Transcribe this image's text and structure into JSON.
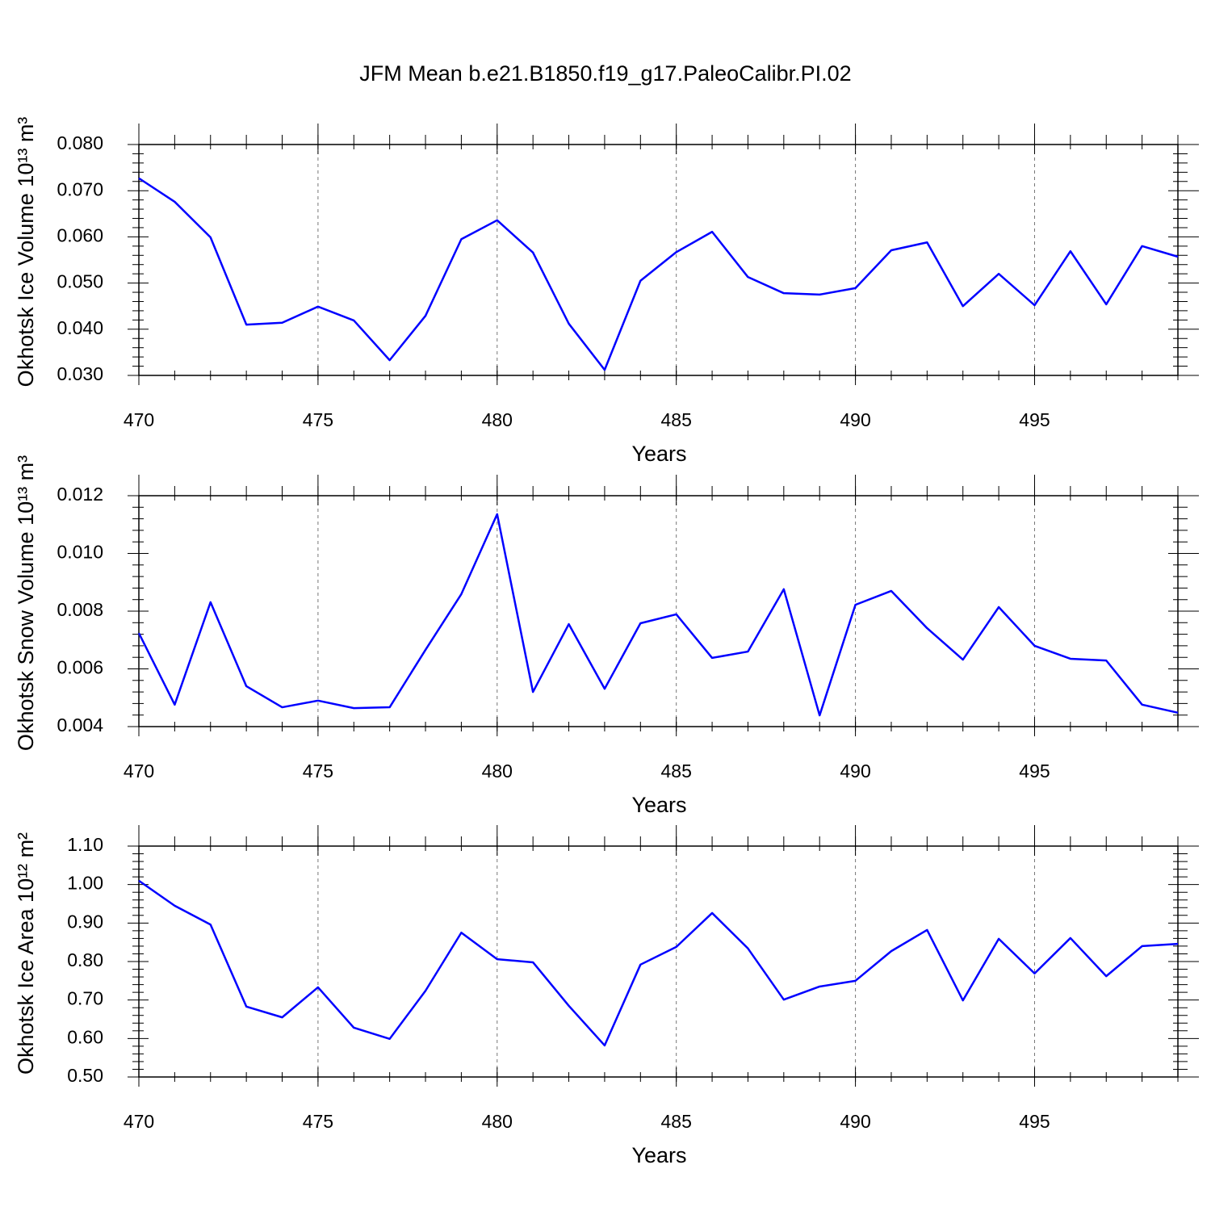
{
  "title": "JFM Mean b.e21.B1850.f19_g17.PaleoCalibr.PI.02",
  "chart_data": [
    {
      "type": "line",
      "ylabel": "Okhotsk Ice Volume 10¹³ m³",
      "xlabel": "Years",
      "color": "#0000ff",
      "grid": "x",
      "x": [
        470,
        471,
        472,
        473,
        474,
        475,
        476,
        477,
        478,
        479,
        480,
        481,
        482,
        483,
        484,
        485,
        486,
        487,
        488,
        489,
        490,
        491,
        492,
        493,
        494,
        495,
        496,
        497,
        498,
        499
      ],
      "values": [
        0.0727,
        0.0676,
        0.0599,
        0.041,
        0.0414,
        0.0449,
        0.0419,
        0.0333,
        0.0429,
        0.0595,
        0.0636,
        0.0566,
        0.0412,
        0.0312,
        0.0505,
        0.0567,
        0.0611,
        0.0513,
        0.0478,
        0.0475,
        0.0489,
        0.0571,
        0.0588,
        0.045,
        0.052,
        0.0452,
        0.0569,
        0.0454,
        0.058,
        0.0557
      ],
      "xlim": [
        470,
        499
      ],
      "xticks": [
        470,
        475,
        480,
        485,
        490,
        495
      ],
      "ylim": [
        0.03,
        0.08
      ],
      "yticks": [
        {
          "value": 0.03,
          "label": "0.030"
        },
        {
          "value": 0.04,
          "label": "0.040"
        },
        {
          "value": 0.05,
          "label": "0.050"
        },
        {
          "value": 0.06,
          "label": "0.060"
        },
        {
          "value": 0.07,
          "label": "0.070"
        },
        {
          "value": 0.08,
          "label": "0.080"
        }
      ]
    },
    {
      "type": "line",
      "ylabel": "Okhotsk Snow Volume 10¹³ m³",
      "xlabel": "Years",
      "color": "#0000ff",
      "grid": "x",
      "x": [
        470,
        471,
        472,
        473,
        474,
        475,
        476,
        477,
        478,
        479,
        480,
        481,
        482,
        483,
        484,
        485,
        486,
        487,
        488,
        489,
        490,
        491,
        492,
        493,
        494,
        495,
        496,
        497,
        498,
        499
      ],
      "values": [
        0.00724,
        0.00476,
        0.00831,
        0.0054,
        0.00467,
        0.0049,
        0.00464,
        0.00467,
        0.00666,
        0.00859,
        0.01136,
        0.0052,
        0.00755,
        0.00531,
        0.00758,
        0.00789,
        0.00638,
        0.0066,
        0.00876,
        0.00439,
        0.00822,
        0.0087,
        0.00741,
        0.00632,
        0.00814,
        0.0068,
        0.00635,
        0.00629,
        0.00476,
        0.00448
      ],
      "xlim": [
        470,
        499
      ],
      "xticks": [
        470,
        475,
        480,
        485,
        490,
        495
      ],
      "ylim": [
        0.004,
        0.012
      ],
      "yticks": [
        {
          "value": 0.004,
          "label": "0.004"
        },
        {
          "value": 0.006,
          "label": "0.006"
        },
        {
          "value": 0.008,
          "label": "0.008"
        },
        {
          "value": 0.01,
          "label": "0.010"
        },
        {
          "value": 0.012,
          "label": "0.012"
        }
      ]
    },
    {
      "type": "line",
      "ylabel": "Okhotsk Ice Area 10¹² m²",
      "xlabel": "Years",
      "color": "#0000ff",
      "grid": "x",
      "x": [
        470,
        471,
        472,
        473,
        474,
        475,
        476,
        477,
        478,
        479,
        480,
        481,
        482,
        483,
        484,
        485,
        486,
        487,
        488,
        489,
        490,
        491,
        492,
        493,
        494,
        495,
        496,
        497,
        498,
        499
      ],
      "values": [
        1.01,
        0.945,
        0.896,
        0.683,
        0.655,
        0.733,
        0.628,
        0.599,
        0.724,
        0.875,
        0.806,
        0.798,
        0.685,
        0.582,
        0.792,
        0.838,
        0.926,
        0.834,
        0.701,
        0.735,
        0.75,
        0.827,
        0.882,
        0.699,
        0.859,
        0.769,
        0.861,
        0.762,
        0.84,
        0.846
      ],
      "xlim": [
        470,
        499
      ],
      "xticks": [
        470,
        475,
        480,
        485,
        490,
        495
      ],
      "ylim": [
        0.5,
        1.1
      ],
      "yticks": [
        {
          "value": 0.5,
          "label": "0.50"
        },
        {
          "value": 0.6,
          "label": "0.60"
        },
        {
          "value": 0.7,
          "label": "0.70"
        },
        {
          "value": 0.8,
          "label": "0.80"
        },
        {
          "value": 0.9,
          "label": "0.90"
        },
        {
          "value": 1.0,
          "label": "1.00"
        },
        {
          "value": 1.1,
          "label": "1.10"
        }
      ]
    }
  ]
}
